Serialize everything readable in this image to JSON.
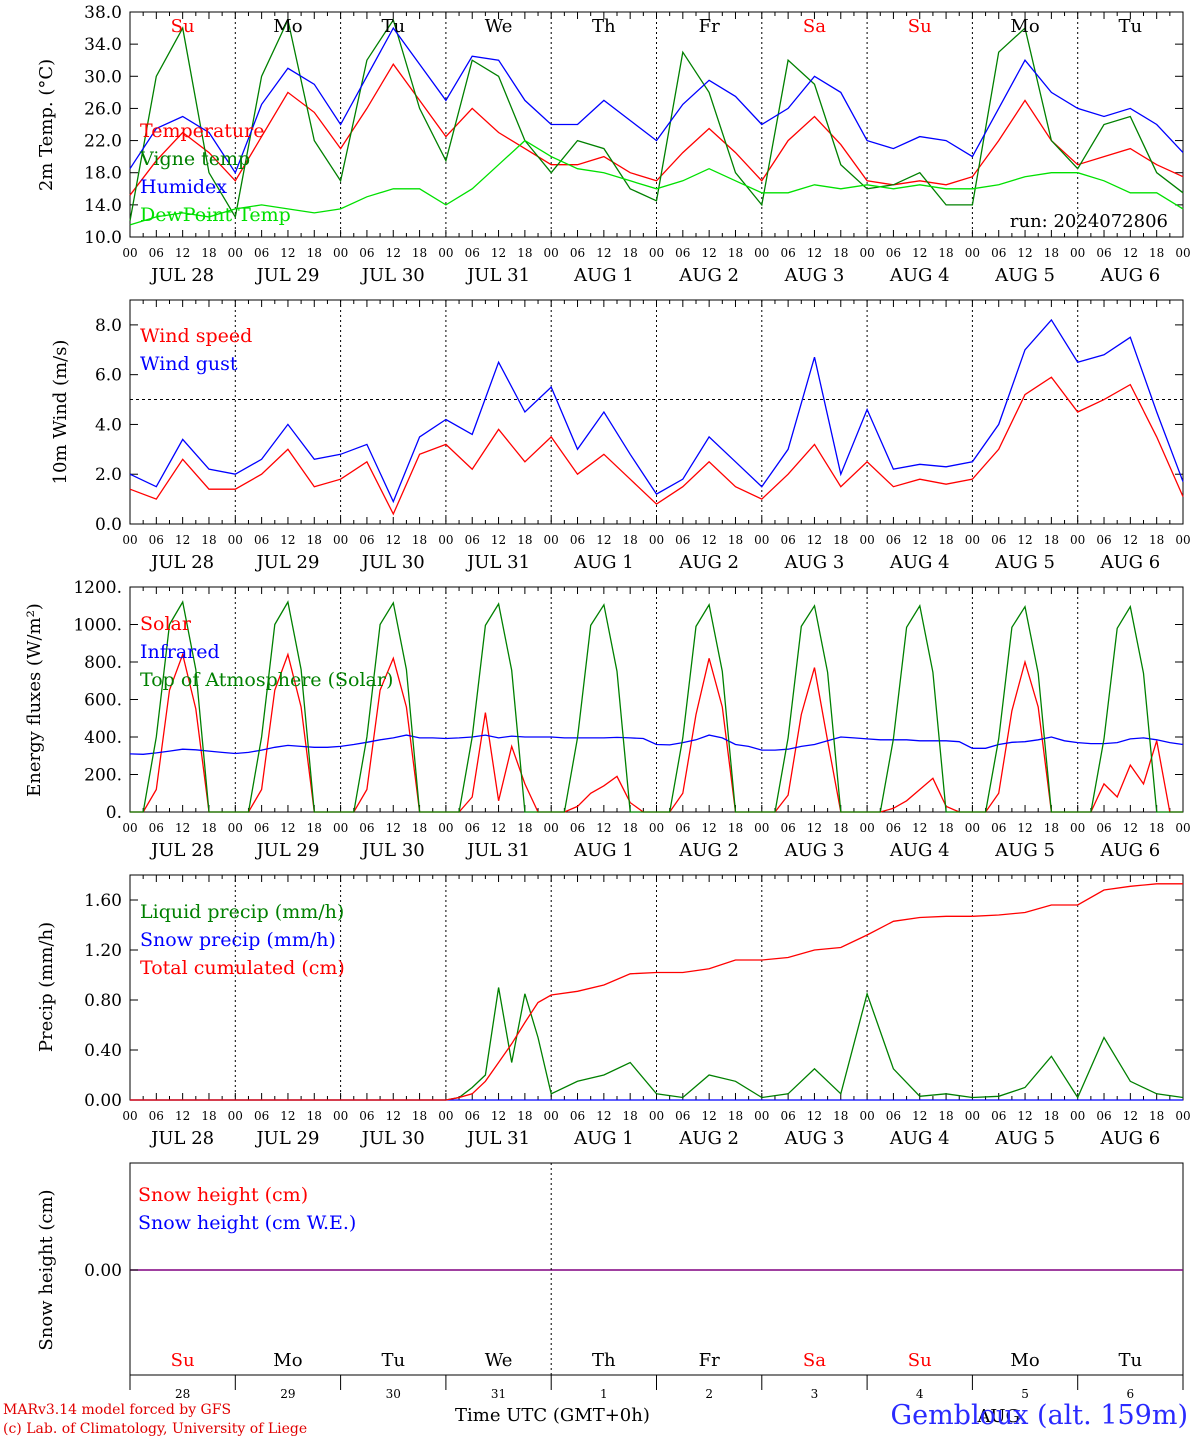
{
  "days": [
    "JUL 28",
    "JUL 29",
    "JUL 30",
    "JUL 31",
    "AUG  1",
    "AUG  2",
    "AUG  3",
    "AUG  4",
    "AUG  5",
    "AUG  6"
  ],
  "hour_ticks": [
    "00",
    "06",
    "12",
    "18"
  ],
  "weekdays": [
    "Su",
    "Mo",
    "Tu",
    "We",
    "Th",
    "Fr",
    "Sa",
    "Su",
    "Mo",
    "Tu"
  ],
  "weekend_flags": [
    true,
    false,
    false,
    false,
    false,
    false,
    true,
    true,
    false,
    false
  ],
  "day_numbers": [
    "28",
    "29",
    "30",
    "31",
    "1",
    "2",
    "3",
    "4",
    "5",
    "6"
  ],
  "colors": {
    "red": "#ff0000",
    "green": "#008000",
    "blue": "#0000ff",
    "lightgreen": "#00e000",
    "purple": "#800080"
  },
  "footer": {
    "credit_line1": "MARv3.14 model forced by GFS",
    "credit_line2": "(c) Lab. of Climatology, University of Liege",
    "x_title": "Time UTC (GMT+0h)",
    "station": "Gembloux (alt. 159m)",
    "overlap_label": "AUG"
  },
  "chart_data": [
    {
      "type": "line",
      "ylabel": "2m Temp. (°C)",
      "ylim": [
        10,
        38
      ],
      "yticks": [
        "10.0",
        "14.0",
        "18.0",
        "22.0",
        "26.0",
        "30.0",
        "34.0",
        "38.0"
      ],
      "run_label": "run: 2024072806",
      "x_hours": [
        0,
        6,
        12,
        18,
        24,
        30,
        36,
        42,
        48,
        54,
        60,
        66,
        72,
        78,
        84,
        90,
        96,
        102,
        108,
        114,
        120,
        126,
        132,
        138,
        144,
        150,
        156,
        162,
        168,
        174,
        180,
        186,
        192,
        198,
        204,
        210,
        216,
        222,
        228,
        234,
        240
      ],
      "series": [
        {
          "name": "Temperature",
          "color": "red",
          "values": [
            15.2,
            19.5,
            23.0,
            20.5,
            17.0,
            22.5,
            28.0,
            25.5,
            21.0,
            26.0,
            31.5,
            27.0,
            22.5,
            26.0,
            23.0,
            21.0,
            19.0,
            19.0,
            20.0,
            18.0,
            17.0,
            20.5,
            23.5,
            20.5,
            17.0,
            22.0,
            25.0,
            21.5,
            17.0,
            16.5,
            17.0,
            16.5,
            17.5,
            22.0,
            27.0,
            22.0,
            19.0,
            20.0,
            21.0,
            19.0,
            17.5
          ]
        },
        {
          "name": "Vigne temp",
          "color": "green",
          "values": [
            12.0,
            30.0,
            36.0,
            18.0,
            12.5,
            30.0,
            37.0,
            22.0,
            17.0,
            32.0,
            37.0,
            26.0,
            19.5,
            32.0,
            30.0,
            22.0,
            18.0,
            22.0,
            21.0,
            16.0,
            14.5,
            33.0,
            28.0,
            18.0,
            14.0,
            32.0,
            29.0,
            19.0,
            16.0,
            16.5,
            18.0,
            14.0,
            14.0,
            33.0,
            36.0,
            22.0,
            18.5,
            24.0,
            25.0,
            18.0,
            15.5
          ]
        },
        {
          "name": "Humidex",
          "color": "blue",
          "values": [
            18.5,
            23.5,
            25.0,
            23.0,
            18.0,
            26.5,
            31.0,
            29.0,
            24.0,
            30.0,
            36.0,
            31.5,
            27.0,
            32.5,
            32.0,
            27.0,
            24.0,
            24.0,
            27.0,
            24.5,
            22.0,
            26.5,
            29.5,
            27.5,
            24.0,
            26.0,
            30.0,
            28.0,
            22.0,
            21.0,
            22.5,
            22.0,
            20.0,
            26.0,
            32.0,
            28.0,
            26.0,
            25.0,
            26.0,
            24.0,
            20.5
          ]
        },
        {
          "name": "DewPoint Temp",
          "color": "lightgreen",
          "values": [
            11.5,
            12.5,
            13.0,
            12.5,
            13.5,
            14.0,
            13.5,
            13.0,
            13.5,
            15.0,
            16.0,
            16.0,
            14.0,
            16.0,
            19.0,
            22.0,
            20.0,
            18.5,
            18.0,
            17.0,
            16.0,
            17.0,
            18.5,
            17.0,
            15.5,
            15.5,
            16.5,
            16.0,
            16.5,
            16.0,
            16.5,
            16.0,
            16.0,
            16.5,
            17.5,
            18.0,
            18.0,
            17.0,
            15.5,
            15.5,
            13.5
          ]
        }
      ]
    },
    {
      "type": "line",
      "ylabel": "10m Wind (m/s)",
      "ylim": [
        0,
        9
      ],
      "yticks": [
        "0.0",
        "2.0",
        "4.0",
        "6.0",
        "8.0"
      ],
      "reference_line": 5,
      "x_hours": [
        0,
        6,
        12,
        18,
        24,
        30,
        36,
        42,
        48,
        54,
        60,
        66,
        72,
        78,
        84,
        90,
        96,
        102,
        108,
        114,
        120,
        126,
        132,
        138,
        144,
        150,
        156,
        162,
        168,
        174,
        180,
        186,
        192,
        198,
        204,
        210,
        216,
        222,
        228,
        234,
        240
      ],
      "series": [
        {
          "name": "Wind speed",
          "color": "red",
          "values": [
            1.4,
            1.0,
            2.6,
            1.4,
            1.4,
            2.0,
            3.0,
            1.5,
            1.8,
            2.5,
            0.4,
            2.8,
            3.2,
            2.2,
            3.8,
            2.5,
            3.5,
            2.0,
            2.8,
            1.8,
            0.8,
            1.5,
            2.5,
            1.5,
            1.0,
            2.0,
            3.2,
            1.5,
            2.5,
            1.5,
            1.8,
            1.6,
            1.8,
            3.0,
            5.2,
            5.9,
            4.5,
            5.0,
            5.6,
            3.5,
            1.1
          ]
        },
        {
          "name": "Wind gust",
          "color": "blue",
          "values": [
            2.0,
            1.5,
            3.4,
            2.2,
            2.0,
            2.6,
            4.0,
            2.6,
            2.8,
            3.2,
            0.9,
            3.5,
            4.2,
            3.6,
            6.5,
            4.5,
            5.5,
            3.0,
            4.5,
            2.8,
            1.2,
            1.8,
            3.5,
            2.5,
            1.5,
            3.0,
            6.7,
            2.0,
            4.6,
            2.2,
            2.4,
            2.3,
            2.5,
            4.0,
            7.0,
            8.2,
            6.5,
            6.8,
            7.5,
            4.5,
            1.7
          ]
        }
      ]
    },
    {
      "type": "line",
      "ylabel": "Energy fluxes (W/m²)",
      "ylim": [
        0,
        1200
      ],
      "yticks": [
        "0.",
        "200.",
        "400.",
        "600.",
        "800.",
        "1000.",
        "1200."
      ],
      "x_hours": [
        0,
        3,
        6,
        9,
        12,
        15,
        18,
        21,
        24,
        27,
        30,
        33,
        36,
        39,
        42,
        45,
        48,
        51,
        54,
        57,
        60,
        63,
        66,
        69,
        72,
        75,
        78,
        81,
        84,
        87,
        90,
        93,
        96,
        99,
        102,
        105,
        108,
        111,
        114,
        117,
        120,
        123,
        126,
        129,
        132,
        135,
        138,
        141,
        144,
        147,
        150,
        153,
        156,
        159,
        162,
        165,
        168,
        171,
        174,
        177,
        180,
        183,
        186,
        189,
        192,
        195,
        198,
        201,
        204,
        207,
        210,
        213,
        216,
        219,
        222,
        225,
        228,
        231,
        234,
        237,
        240
      ],
      "series": [
        {
          "name": "Solar",
          "color": "red",
          "values": [
            0,
            0,
            120,
            650,
            840,
            550,
            0,
            0,
            0,
            0,
            120,
            650,
            840,
            560,
            0,
            0,
            0,
            0,
            120,
            650,
            820,
            560,
            0,
            0,
            0,
            0,
            80,
            530,
            60,
            350,
            150,
            0,
            0,
            0,
            30,
            100,
            140,
            190,
            50,
            0,
            0,
            0,
            100,
            520,
            820,
            560,
            0,
            0,
            0,
            0,
            90,
            520,
            770,
            380,
            0,
            0,
            0,
            0,
            20,
            60,
            120,
            180,
            30,
            0,
            0,
            0,
            100,
            540,
            800,
            560,
            0,
            0,
            0,
            0,
            150,
            80,
            250,
            150,
            380,
            0,
            0
          ]
        },
        {
          "name": "Infrared",
          "color": "blue",
          "values": [
            310,
            308,
            315,
            325,
            335,
            332,
            325,
            318,
            312,
            318,
            330,
            345,
            355,
            350,
            345,
            345,
            350,
            360,
            372,
            385,
            395,
            410,
            395,
            395,
            392,
            395,
            400,
            410,
            395,
            405,
            400,
            400,
            400,
            395,
            395,
            395,
            395,
            398,
            395,
            392,
            360,
            358,
            370,
            385,
            410,
            395,
            360,
            350,
            330,
            330,
            335,
            350,
            360,
            380,
            400,
            395,
            390,
            385,
            385,
            385,
            380,
            380,
            380,
            375,
            340,
            340,
            360,
            372,
            375,
            385,
            400,
            380,
            370,
            365,
            365,
            370,
            390,
            395,
            385,
            370,
            360
          ]
        },
        {
          "name": "Top of Atmosphere (Solar)",
          "color": "green",
          "values": [
            0,
            0,
            400,
            1000,
            1120,
            760,
            0,
            0,
            0,
            0,
            400,
            1000,
            1120,
            760,
            0,
            0,
            0,
            0,
            400,
            1000,
            1115,
            760,
            0,
            0,
            0,
            0,
            400,
            995,
            1110,
            755,
            0,
            0,
            0,
            0,
            395,
            995,
            1105,
            750,
            0,
            0,
            0,
            0,
            395,
            990,
            1105,
            750,
            0,
            0,
            0,
            0,
            395,
            990,
            1100,
            745,
            0,
            0,
            0,
            0,
            390,
            985,
            1100,
            745,
            0,
            0,
            0,
            0,
            390,
            985,
            1095,
            740,
            0,
            0,
            0,
            0,
            390,
            980,
            1095,
            740,
            0,
            0,
            0
          ]
        }
      ]
    },
    {
      "type": "line",
      "ylabel": "Precip (mm/h)",
      "ylim": [
        0,
        1.8
      ],
      "yticks": [
        "0.00",
        "0.40",
        "0.80",
        "1.20",
        "1.60"
      ],
      "x_hours": [
        0,
        6,
        12,
        18,
        24,
        30,
        36,
        42,
        48,
        54,
        60,
        66,
        72,
        75,
        78,
        81,
        84,
        87,
        90,
        93,
        96,
        102,
        108,
        114,
        120,
        126,
        132,
        138,
        144,
        150,
        156,
        162,
        168,
        174,
        180,
        186,
        192,
        198,
        204,
        210,
        216,
        222,
        228,
        234,
        240
      ],
      "series": [
        {
          "name": "Liquid precip (mm/h)",
          "color": "green",
          "values": [
            0,
            0,
            0,
            0,
            0,
            0,
            0,
            0,
            0,
            0,
            0,
            0,
            0,
            0.02,
            0.1,
            0.2,
            0.9,
            0.3,
            0.85,
            0.5,
            0.05,
            0.15,
            0.2,
            0.3,
            0.05,
            0.02,
            0.2,
            0.15,
            0.02,
            0.05,
            0.25,
            0.05,
            0.85,
            0.25,
            0.03,
            0.05,
            0.02,
            0.03,
            0.1,
            0.35,
            0.02,
            0.5,
            0.15,
            0.05,
            0.02
          ]
        },
        {
          "name": "Snow precip (mm/h)",
          "color": "blue",
          "values": [
            0,
            0,
            0,
            0,
            0,
            0,
            0,
            0,
            0,
            0,
            0,
            0,
            0,
            0,
            0,
            0,
            0,
            0,
            0,
            0,
            0,
            0,
            0,
            0,
            0,
            0,
            0,
            0,
            0,
            0,
            0,
            0,
            0,
            0,
            0,
            0,
            0,
            0,
            0,
            0,
            0,
            0,
            0,
            0,
            0
          ]
        },
        {
          "name": "Total cumulated (cm)",
          "color": "red",
          "values": [
            0,
            0,
            0,
            0,
            0,
            0,
            0,
            0,
            0,
            0,
            0,
            0,
            0,
            0.02,
            0.05,
            0.15,
            0.3,
            0.45,
            0.62,
            0.78,
            0.84,
            0.87,
            0.92,
            1.01,
            1.02,
            1.02,
            1.05,
            1.12,
            1.12,
            1.14,
            1.2,
            1.22,
            1.32,
            1.43,
            1.46,
            1.47,
            1.47,
            1.48,
            1.5,
            1.56,
            1.56,
            1.68,
            1.71,
            1.73,
            1.73
          ]
        }
      ]
    },
    {
      "type": "line",
      "ylabel": "Snow height (cm)",
      "ytick": "0.00",
      "series": [
        {
          "name": "Snow height (cm)",
          "color": "red",
          "values": [
            0,
            0
          ]
        },
        {
          "name": "Snow height (cm W.E.)",
          "color": "blue",
          "values": [
            0,
            0
          ]
        }
      ]
    }
  ]
}
